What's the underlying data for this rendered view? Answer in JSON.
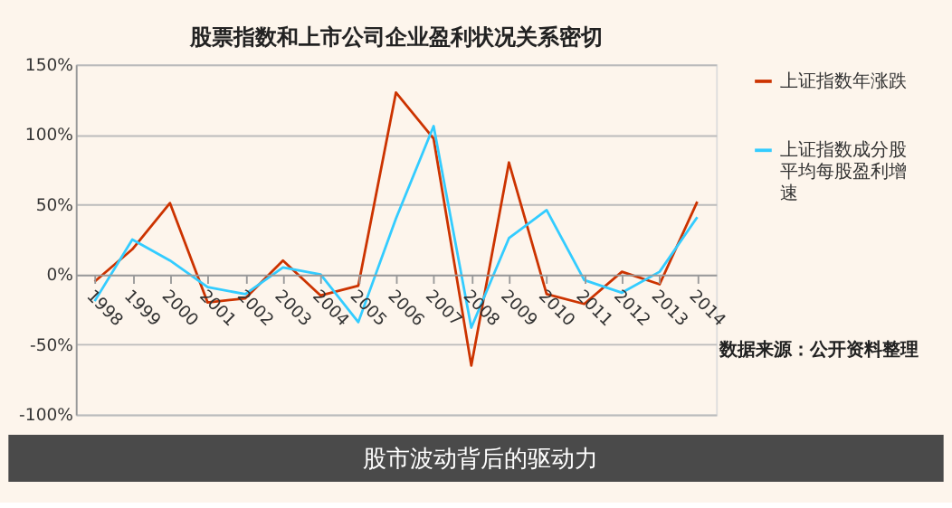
{
  "chart_data": {
    "type": "line",
    "title": "股票指数和上市公司企业盈利状况关系密切",
    "categories": [
      "1998",
      "1999",
      "2000",
      "2001",
      "2002",
      "2003",
      "2004",
      "2005",
      "2006",
      "2007",
      "2008",
      "2009",
      "2010",
      "2011",
      "2012",
      "2013",
      "2014"
    ],
    "series": [
      {
        "name": "上证指数年涨跌",
        "color": "#cc3300",
        "values": [
          -5,
          18,
          51,
          -20,
          -17,
          10,
          -15,
          -8,
          130,
          97,
          -65,
          80,
          -14,
          -21,
          2,
          -7,
          52
        ]
      },
      {
        "name": "上证指数成分股平均每股盈利增速",
        "color": "#33ccff",
        "values": [
          -19,
          25,
          10,
          -9,
          -14,
          5,
          0,
          -34,
          40,
          106,
          -38,
          26,
          46,
          -4,
          -13,
          2,
          41
        ]
      }
    ],
    "ylim": [
      -100,
      150
    ],
    "yticks": [
      {
        "value": -100,
        "label": "-100%"
      },
      {
        "value": -50,
        "label": "-50%"
      },
      {
        "value": 0,
        "label": "0%"
      },
      {
        "value": 50,
        "label": "50%"
      },
      {
        "value": 100,
        "label": "100%"
      },
      {
        "value": 150,
        "label": "150%"
      }
    ],
    "grid": "y",
    "legend": "right",
    "marker": "none",
    "line_style": "solid",
    "annotations": [
      "数据来源：公开资料整理",
      "股市波动背后的驱动力"
    ]
  }
}
